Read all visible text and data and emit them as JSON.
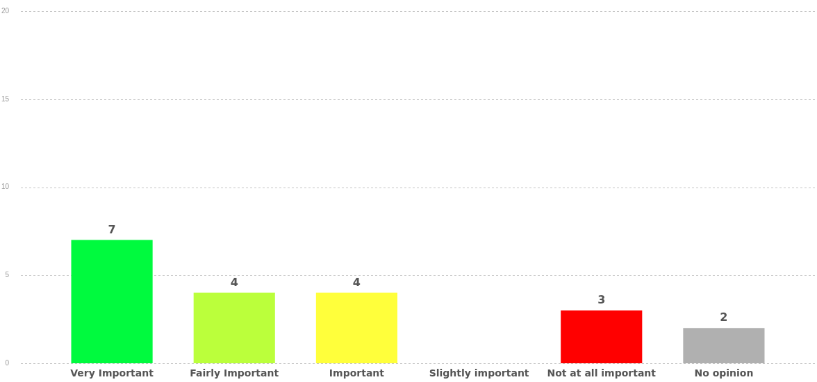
{
  "chart_data": {
    "type": "bar",
    "categories": [
      "Very Important",
      "Fairly Important",
      "Important",
      "Slightly important",
      "Not at all important",
      "No opinion"
    ],
    "values": [
      7,
      4,
      4,
      0,
      3,
      2
    ],
    "colors": [
      "#00fa3e",
      "#bbff3b",
      "#ffff3b",
      "#ff9900",
      "#ff0000",
      "#b0b0b0"
    ],
    "value_labels": [
      "7",
      "4",
      "4",
      null,
      "3",
      "2"
    ],
    "ylim": [
      0,
      20
    ],
    "yticks": [
      0,
      5,
      10,
      15,
      20
    ],
    "grid": "y"
  }
}
